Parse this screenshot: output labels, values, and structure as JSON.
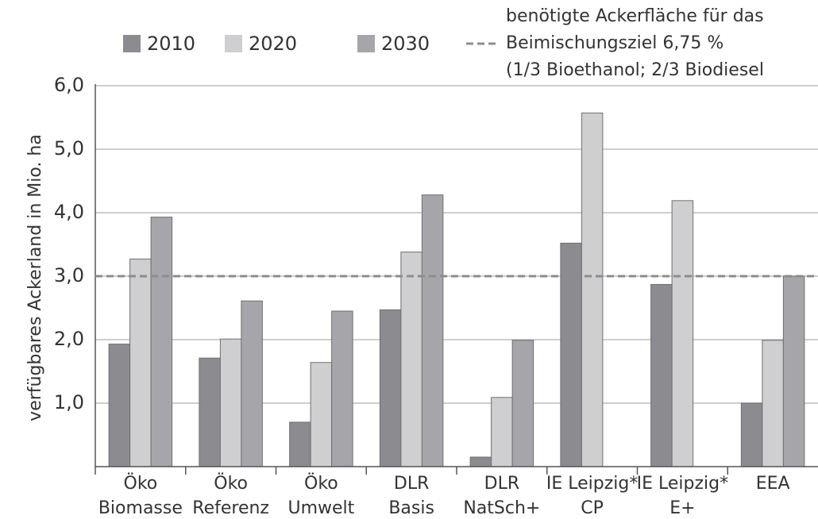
{
  "chart_data": {
    "type": "bar",
    "y_label": "verfügbares Ackerland in Mio. ha",
    "categories": [
      [
        "Öko",
        "Biomasse"
      ],
      [
        "Öko",
        "Referenz"
      ],
      [
        "Öko",
        "Umwelt"
      ],
      [
        "DLR",
        "Basis"
      ],
      [
        "DLR",
        "NatSch+"
      ],
      [
        "IE Leipzig*",
        "CP"
      ],
      [
        "IE Leipzig*",
        "E+"
      ],
      [
        "EEA"
      ]
    ],
    "series": [
      {
        "name": "2010",
        "color": "#8c8c90",
        "values": [
          1.93,
          1.71,
          0.7,
          2.47,
          0.15,
          3.52,
          2.87,
          1.0
        ]
      },
      {
        "name": "2020",
        "color": "#cfcfd1",
        "values": [
          3.27,
          2.01,
          1.64,
          3.38,
          1.09,
          5.57,
          4.19,
          1.99
        ]
      },
      {
        "name": "2030",
        "color": "#a6a6aa",
        "values": [
          3.93,
          2.61,
          2.45,
          4.28,
          1.99,
          null,
          null,
          3.0
        ]
      }
    ],
    "reference_line": {
      "value": 3,
      "color": "#8c8c90",
      "label": [
        "benötigte Ackerfläche für das",
        "Beimischungsziel 6,75 %",
        "(1/3 Bioethanol; 2/3 Biodiesel"
      ]
    },
    "ylim": [
      0,
      6
    ],
    "yticks": [
      {
        "value": 1,
        "label": "1,0"
      },
      {
        "value": 2,
        "label": "2,0"
      },
      {
        "value": 3,
        "label": "3,0"
      },
      {
        "value": 4,
        "label": "4,0"
      },
      {
        "value": 5,
        "label": "5,0"
      },
      {
        "value": 6,
        "label": "6,0"
      }
    ],
    "grid": true
  }
}
